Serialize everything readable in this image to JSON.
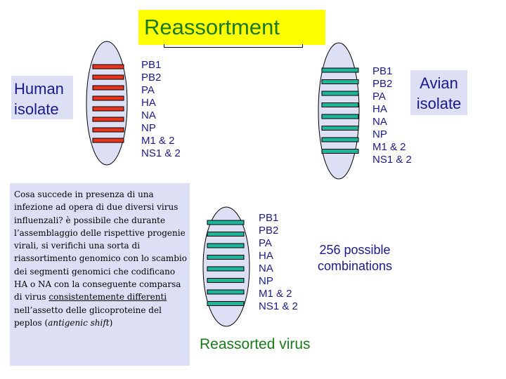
{
  "title": "Reassortment",
  "human_label": "Human isolate",
  "avian_label": "Avian isolate",
  "segments": [
    "PB1",
    "PB2",
    "PA",
    "HA",
    "NA",
    "NP",
    "M1 & 2",
    "NS1 & 2"
  ],
  "combinations_text": "256 possible combinations",
  "reassorted_label": "Reassorted virus",
  "description": {
    "before_underline": "Cosa succede in presenza di una infezione ad opera di due diversi virus influenzali? è possibile che durante l’assemblaggio delle rispettive progenie virali, si verifichi una sorta di riassortimento genomico con lo scambio dei segmenti genomici che codificano HA o NA con la conseguente comparsa di virus ",
    "underlined": "consistentemente differenti",
    "middle": " nell’assetto delle glicoproteine del peplos (",
    "italic": "antigenic shift",
    "after": ")"
  },
  "colors": {
    "human_segment": "#e8341c",
    "avian_segment": "#1fb59a",
    "virus_fill": "#dde0f5",
    "text_blue": "#1a1a8a",
    "title_green": "#1a7a1a",
    "title_bg": "#ffff00"
  },
  "reassorted_segment_origin": [
    "avian",
    "avian",
    "avian",
    "avian",
    "avian",
    "avian",
    "avian",
    "avian"
  ]
}
